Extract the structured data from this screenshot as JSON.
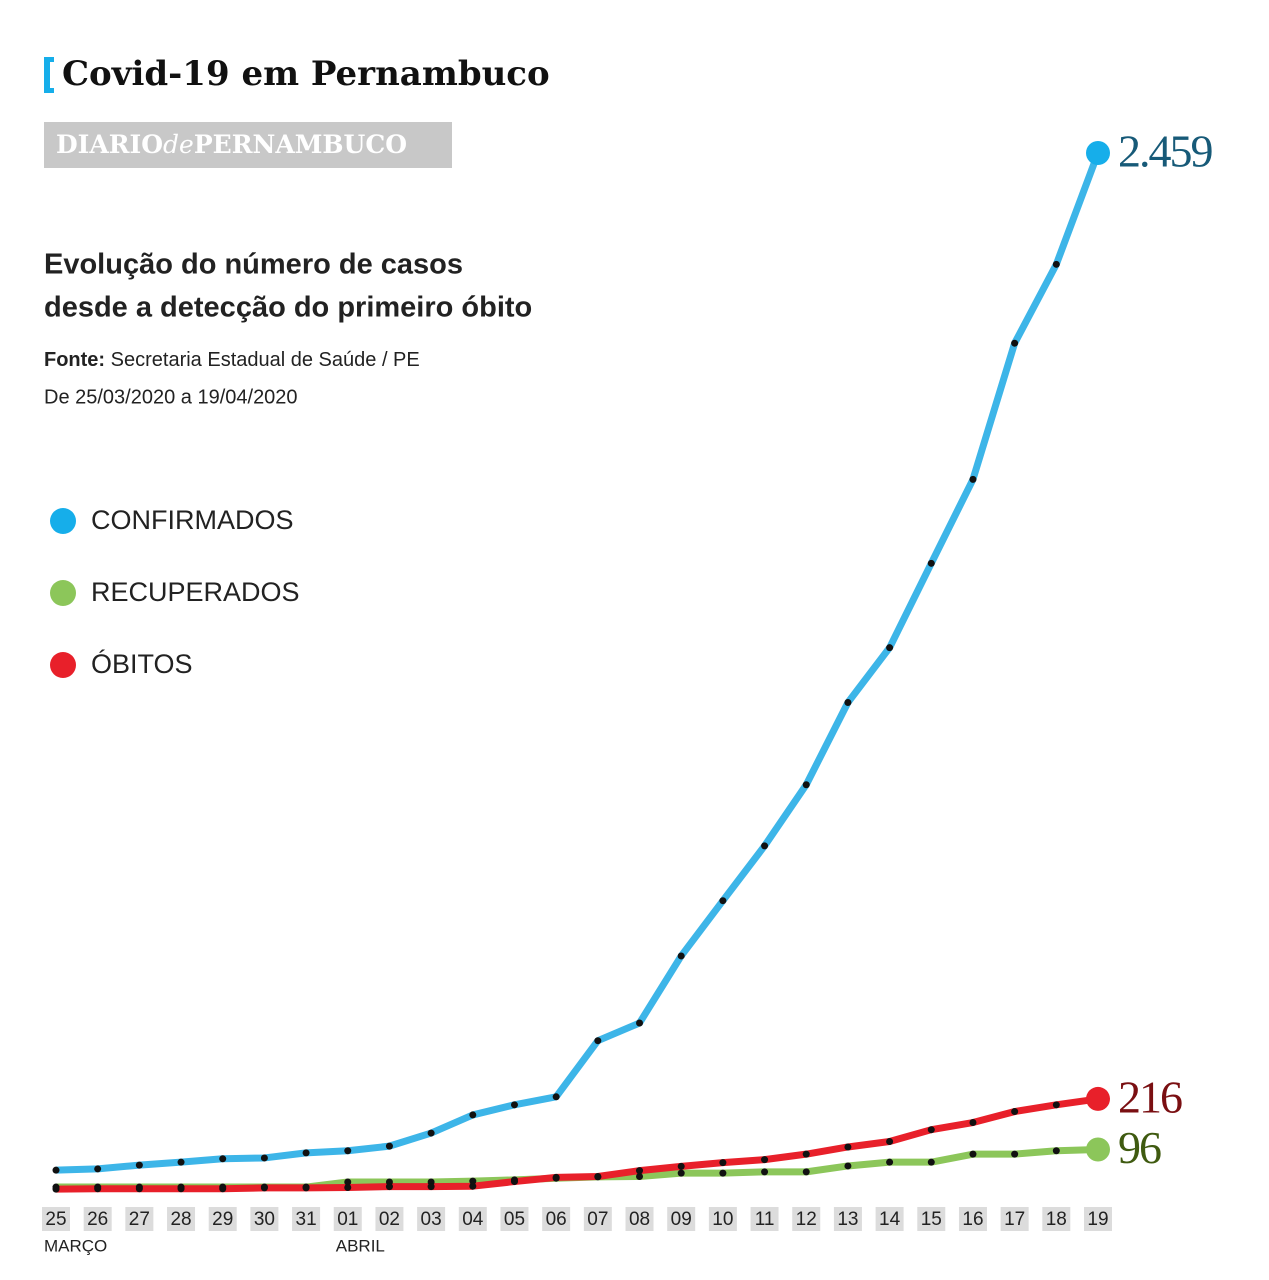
{
  "header": {
    "title": "Covid-19 em Pernambuco",
    "brand": [
      "DIARIO",
      "de",
      "PERNAMBUCO"
    ]
  },
  "chart_data": {
    "type": "line",
    "title": [
      "Evolução do número de casos",
      "desde a detecção do primeiro óbito"
    ],
    "source_label": "Fonte:",
    "source": "Secretaria Estadual de Saúde / PE",
    "period": "De 25/03/2020 a 19/04/2020",
    "categories": [
      "25",
      "26",
      "27",
      "28",
      "29",
      "30",
      "31",
      "01",
      "02",
      "03",
      "04",
      "05",
      "06",
      "07",
      "08",
      "09",
      "10",
      "11",
      "12",
      "13",
      "14",
      "15",
      "16",
      "17",
      "18",
      "19"
    ],
    "months": [
      {
        "label": "MARÇO",
        "start_index": 0
      },
      {
        "label": "ABRIL",
        "start_index": 7
      }
    ],
    "series": [
      {
        "name": "CONFIRMADOS",
        "color": "#3db5e8",
        "legend_color": "#16aeea",
        "label_color": "#175a78",
        "values": [
          47,
          50,
          59,
          66,
          74,
          76,
          88,
          93,
          104,
          135,
          178,
          202,
          221,
          354,
          396,
          555,
          686,
          816,
          961,
          1156,
          1286,
          1486,
          1685,
          2008,
          2195,
          2459
        ],
        "value_labels": [
          null,
          null,
          null,
          null,
          null,
          null,
          null,
          null,
          null,
          null,
          null,
          null,
          null,
          null,
          null,
          null,
          null,
          null,
          null,
          null,
          null,
          null,
          null,
          null,
          null,
          "2.459"
        ]
      },
      {
        "name": "RECUPERADOS",
        "color": "#8cc65a",
        "legend_color": "#8cc65a",
        "label_color": "#3f5a10",
        "values": [
          7,
          7,
          7,
          7,
          7,
          7,
          7,
          19,
          19,
          19,
          21,
          24,
          28,
          31,
          32,
          40,
          40,
          43,
          43,
          57,
          66,
          66,
          85,
          85,
          93,
          96
        ]
      },
      {
        "name": "ÓBITOS",
        "color": "#e8202a",
        "legend_color": "#e8202a",
        "label_color": "#7a0f12",
        "values": [
          2,
          3,
          3,
          3,
          3,
          5,
          5,
          6,
          8,
          8,
          9,
          20,
          30,
          32,
          46,
          56,
          65,
          72,
          85,
          102,
          115,
          143,
          160,
          186,
          202,
          216
        ]
      }
    ]
  }
}
